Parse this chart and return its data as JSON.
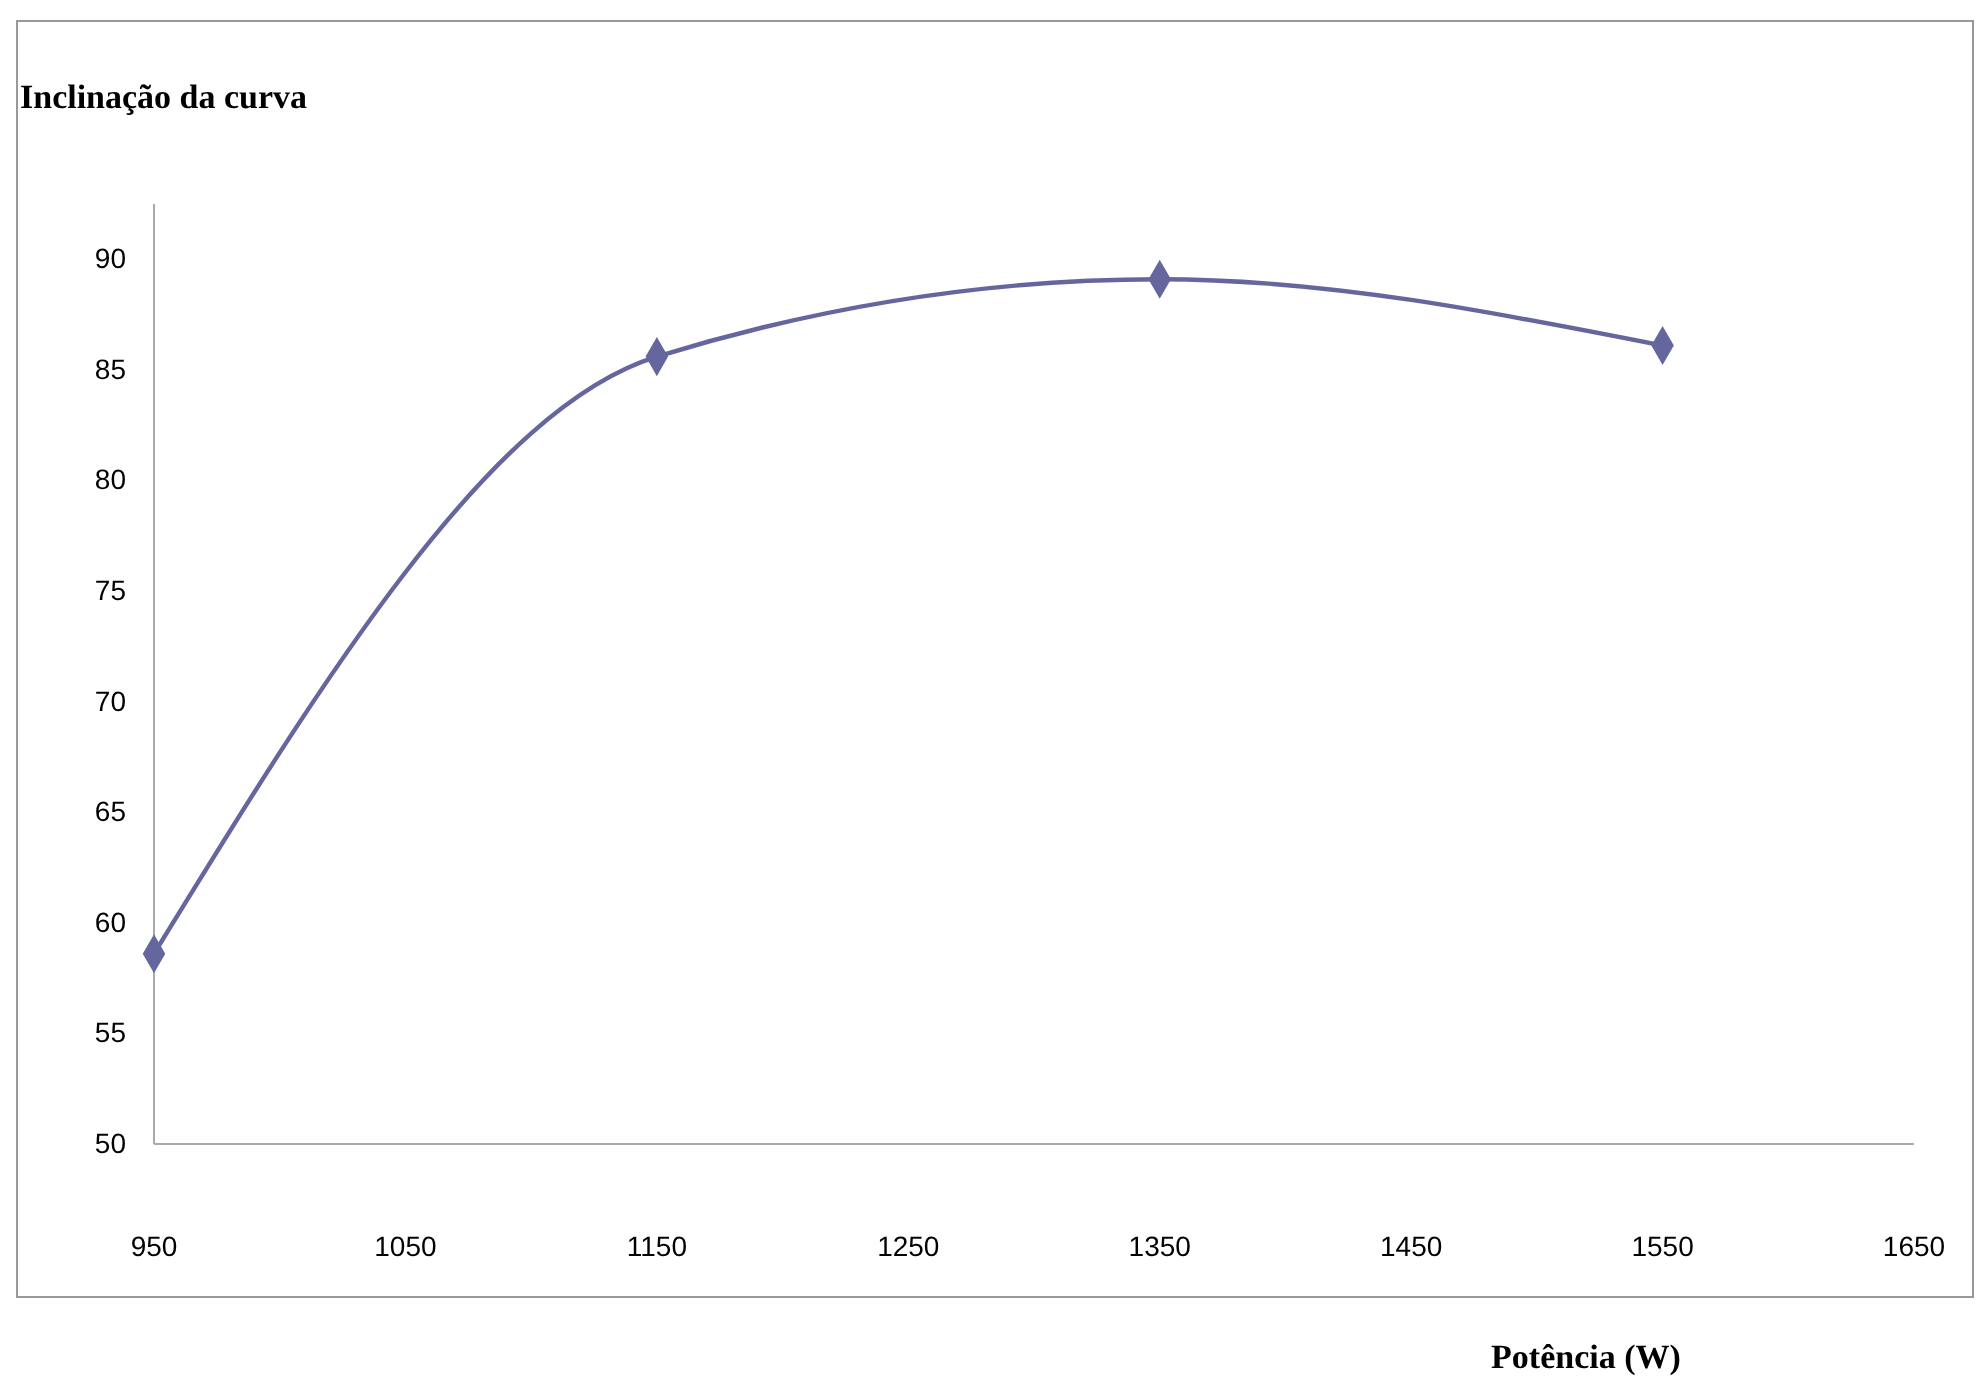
{
  "chart_data": {
    "type": "line",
    "title": "Inclinação da curva",
    "xlabel": "Potência (W)",
    "x": [
      950,
      1150,
      1350,
      1550
    ],
    "series": [
      {
        "color": "#66669e",
        "values": [
          58.6,
          85.6,
          89.1,
          86.1
        ]
      }
    ],
    "xlim": [
      950,
      1650
    ],
    "xticks": [
      950,
      1050,
      1150,
      1250,
      1350,
      1450,
      1550,
      1650
    ],
    "ylim": [
      50,
      92.5
    ],
    "yticks": [
      50,
      55,
      60,
      65,
      70,
      75,
      80,
      85,
      90
    ],
    "grid": false,
    "marker": "diamond",
    "line_style": "solid"
  }
}
